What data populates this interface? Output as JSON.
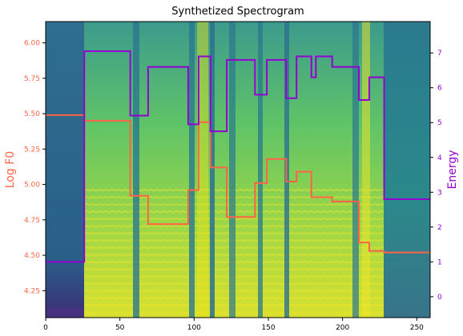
{
  "chart_data": {
    "type": "line",
    "title": "Synthetized Spectrogram",
    "x_axis": {
      "ticks": [
        0,
        50,
        100,
        150,
        200,
        250
      ],
      "xlim": [
        0,
        259
      ]
    },
    "left_axis": {
      "label": "Log F0",
      "color": "#ff6347",
      "ticks": [
        4.25,
        4.5,
        4.75,
        5.0,
        5.25,
        5.5,
        5.75,
        6.0
      ],
      "tick_labels": [
        "4.25",
        "4.50",
        "4.75",
        "5.00",
        "5.25",
        "5.50",
        "5.75",
        "6.00"
      ],
      "ylim": [
        4.06,
        6.15
      ]
    },
    "right_axis": {
      "label": "Energy",
      "color": "#9400d3",
      "ticks": [
        0,
        1,
        2,
        3,
        4,
        5,
        6,
        7
      ],
      "ylim": [
        -0.6,
        7.9
      ]
    },
    "background": "spectrogram heatmap (viridis colormap)",
    "series": [
      {
        "axis": "left",
        "color": "#ff6347",
        "steps": [
          [
            0,
            5.49
          ],
          [
            26,
            5.45
          ],
          [
            57,
            4.92
          ],
          [
            69,
            4.72
          ],
          [
            96,
            4.96
          ],
          [
            103,
            5.44
          ],
          [
            111,
            5.12
          ],
          [
            122,
            4.77
          ],
          [
            141,
            5.01
          ],
          [
            149,
            5.18
          ],
          [
            162,
            5.02
          ],
          [
            169,
            5.09
          ],
          [
            179,
            4.91
          ],
          [
            193,
            4.88
          ],
          [
            211,
            4.59
          ],
          [
            218,
            4.53
          ],
          [
            228,
            4.52
          ],
          [
            259,
            4.52
          ]
        ]
      },
      {
        "axis": "right",
        "color": "#9400d3",
        "steps": [
          [
            0,
            1.0
          ],
          [
            26,
            7.05
          ],
          [
            57,
            5.2
          ],
          [
            69,
            6.6
          ],
          [
            96,
            4.95
          ],
          [
            103,
            6.9
          ],
          [
            111,
            4.75
          ],
          [
            122,
            6.8
          ],
          [
            141,
            5.8
          ],
          [
            149,
            6.8
          ],
          [
            162,
            5.7
          ],
          [
            169,
            6.9
          ],
          [
            179,
            6.3
          ],
          [
            182,
            6.9
          ],
          [
            193,
            6.6
          ],
          [
            211,
            5.65
          ],
          [
            218,
            6.3
          ],
          [
            228,
            2.8
          ],
          [
            259,
            2.8
          ]
        ]
      }
    ]
  }
}
